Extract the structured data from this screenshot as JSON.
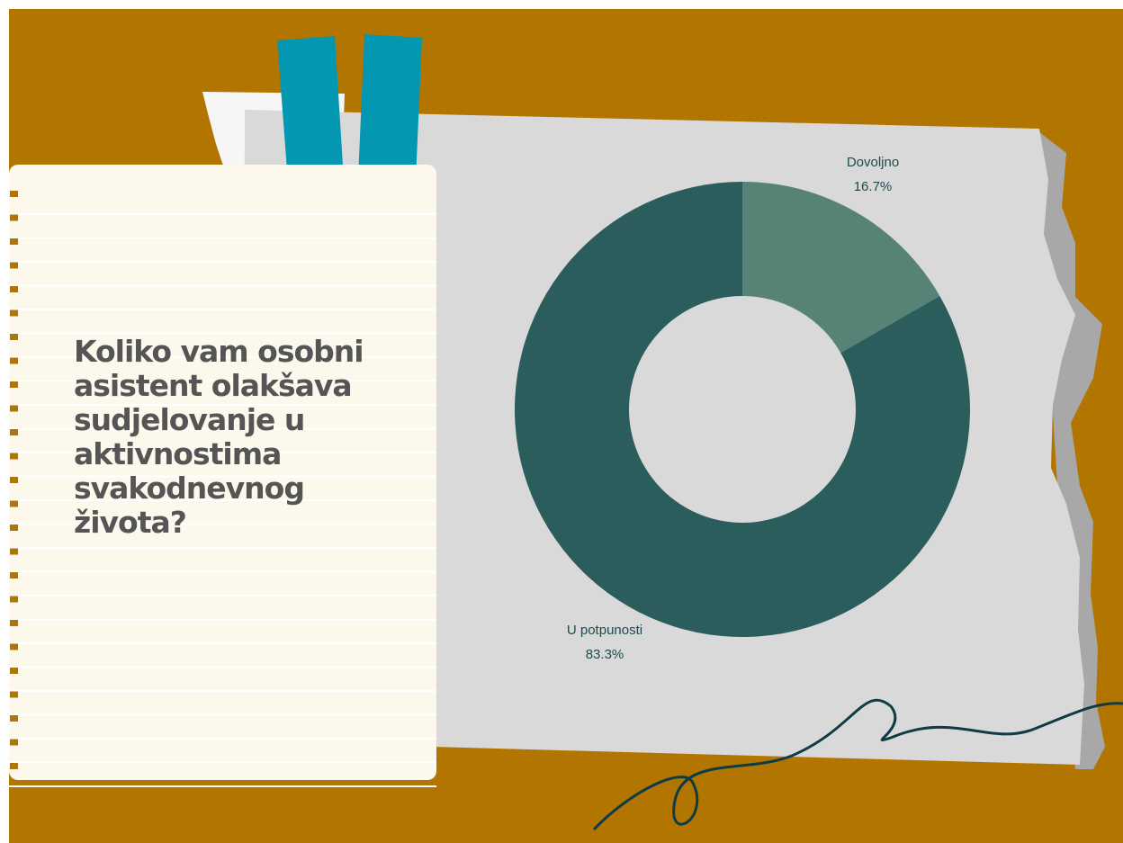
{
  "chart_data": {
    "type": "donut",
    "title": "Koliko vam osobni asistent olakšava sudjelovanje u aktivnostima svakodnevnog života?",
    "categories": [
      "Dovoljno",
      "U potpunosti"
    ],
    "values": [
      16.7,
      83.3
    ],
    "value_labels": [
      "16.7%",
      "83.3%"
    ],
    "colors": [
      "#568376",
      "#2b5d5c"
    ]
  }
}
